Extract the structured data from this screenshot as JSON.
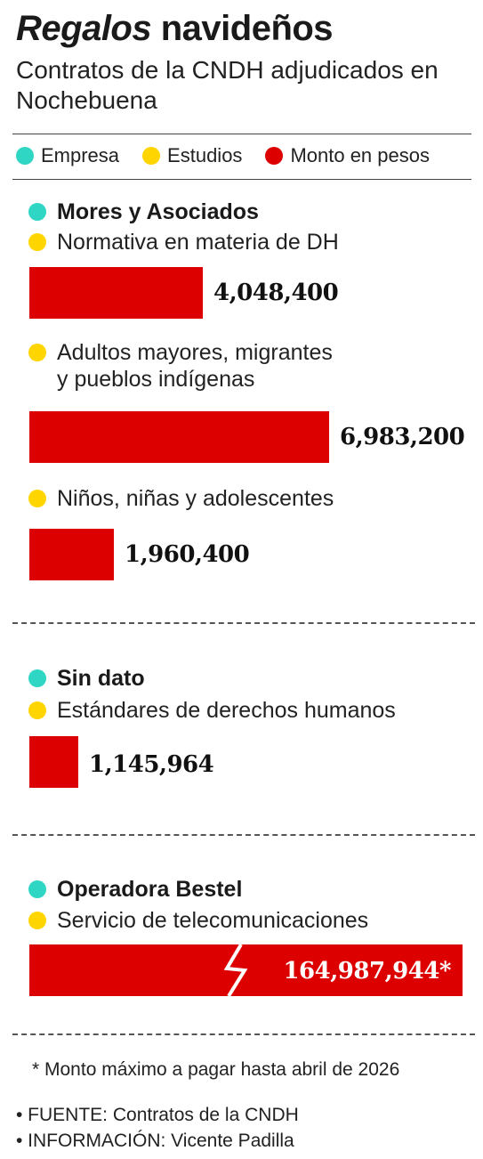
{
  "header": {
    "title_em": "Regalos",
    "title_rest": " navideños",
    "subtitle": "Contratos de la CNDH adjudicados en Nochebuena"
  },
  "legend": [
    {
      "label": "Empresa",
      "color": "#2ed6c3"
    },
    {
      "label": "Estudios",
      "color": "#ffd500"
    },
    {
      "label": "Monto en pesos",
      "color": "#dc0000"
    }
  ],
  "chart_data": {
    "type": "bar",
    "orientation": "horizontal",
    "groups": [
      {
        "company": "Mores y Asociados",
        "studies": [
          {
            "name": "Normativa en materia de DH",
            "value": 4048400,
            "value_label": "4,048,400"
          },
          {
            "name_lines": [
              "Adultos mayores, migrantes",
              "y pueblos indígenas"
            ],
            "value": 6983200,
            "value_label": "6,983,200"
          },
          {
            "name": "Niños, niñas y adolescentes",
            "value": 1960400,
            "value_label": "1,960,400"
          }
        ]
      },
      {
        "company": "Sin dato",
        "studies": [
          {
            "name": "Estándares de derechos humanos",
            "value": 1145964,
            "value_label": "1,145,964"
          }
        ]
      },
      {
        "company": "Operadora Bestel",
        "studies": [
          {
            "name": "Servicio de telecomunicaciones",
            "value": 164987944,
            "value_label": "164,987,944*",
            "axis_break": true
          }
        ]
      }
    ],
    "bar_color": "#dc0000"
  },
  "footnote": "* Monto máximo a pagar hasta abril de 2026",
  "credits": [
    "• FUENTE: Contratos de la CNDH",
    "• INFORMACIÓN: Vicente Padilla"
  ],
  "colors": {
    "company_dot": "#2ed6c3",
    "study_dot": "#ffd500",
    "bar": "#dc0000"
  }
}
